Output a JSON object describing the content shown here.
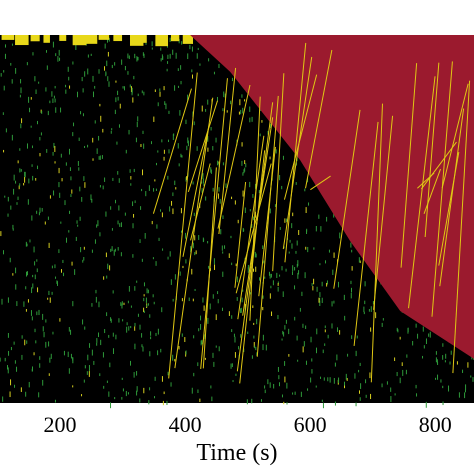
{
  "chart_data": {
    "type": "area",
    "x": [
      408,
      472,
      584,
      664,
      744,
      862
    ],
    "values": [
      1,
      0.9,
      0.66,
      0.44,
      0.25,
      0.12
    ],
    "color": "#9b1a2e",
    "xlim": [
      104,
      862
    ],
    "ylim": [
      0,
      1
    ],
    "xticks": [
      200,
      400,
      600,
      800
    ],
    "xlabel": "Time (s)"
  }
}
